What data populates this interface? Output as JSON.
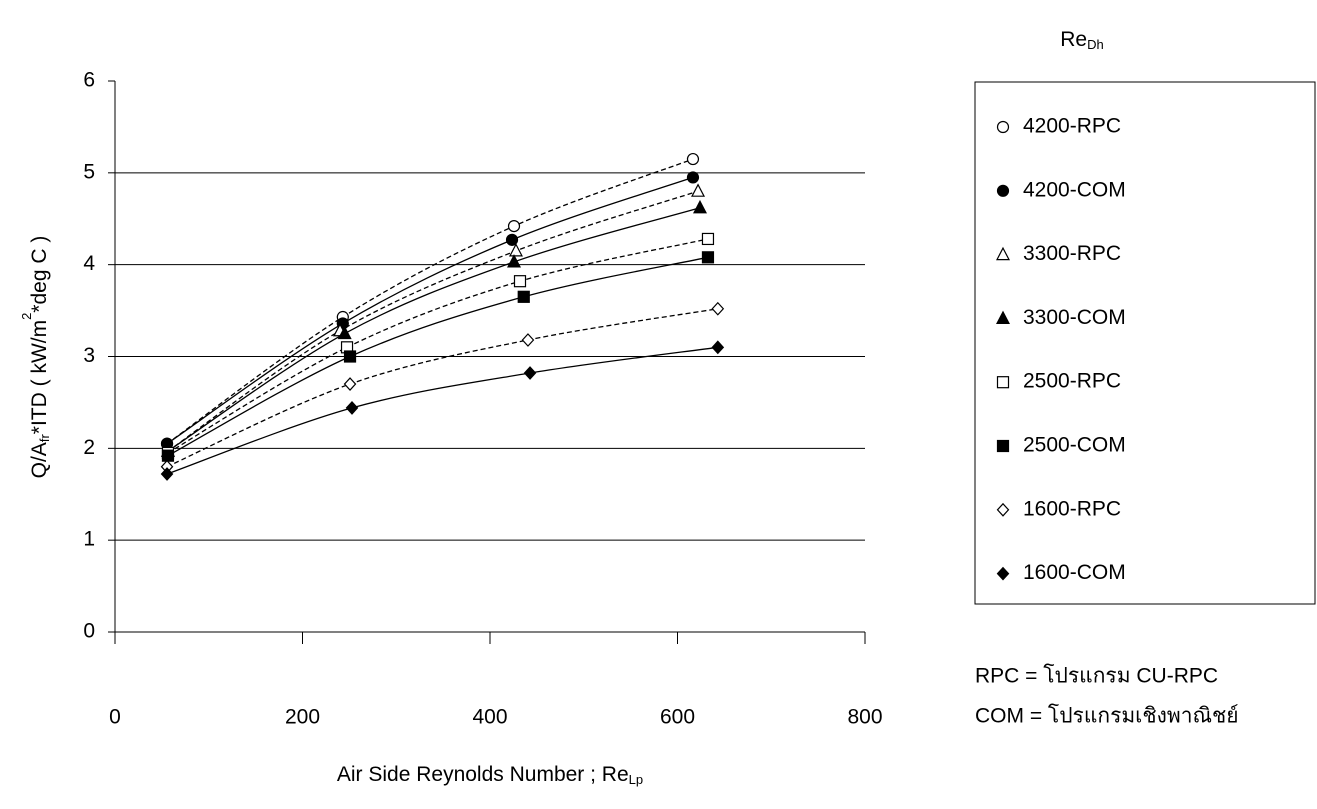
{
  "chart_data": {
    "type": "scatter",
    "x_label": [
      "Air Side Reynolds Number ; Re",
      "Lp"
    ],
    "y_label": [
      "Q/A",
      "fr",
      "*ITD  ( kW/m",
      "2",
      "*deg C )"
    ],
    "legend_title": [
      "Re",
      "Dh"
    ],
    "legend": "right",
    "grid": true,
    "xlim": [
      0,
      800
    ],
    "xticks": [
      0,
      200,
      400,
      600,
      800
    ],
    "ylim": [
      0,
      6
    ],
    "yticks": [
      0,
      1,
      2,
      3,
      4,
      5,
      6
    ],
    "series": [
      {
        "name": "4200-RPC",
        "color": "#000000",
        "marker": "circle-open",
        "line_style": "dashed",
        "x": [
          55.5,
          243,
          425.6,
          616.5
        ],
        "values": [
          2.05,
          3.43,
          4.42,
          5.15
        ]
      },
      {
        "name": "4200-COM",
        "color": "#000000",
        "marker": "circle",
        "line_style": "solid",
        "x": [
          55.5,
          243,
          423.5,
          616.5
        ],
        "values": [
          2.05,
          3.36,
          4.27,
          4.95
        ]
      },
      {
        "name": "3300-RPC",
        "color": "#000000",
        "marker": "triangle-open",
        "line_style": "dashed",
        "x": [
          56.5,
          240,
          427.7,
          621.9
        ],
        "values": [
          1.97,
          3.28,
          4.15,
          4.8
        ]
      },
      {
        "name": "3300-COM",
        "color": "#000000",
        "marker": "triangle",
        "line_style": "solid",
        "x": [
          56.5,
          245,
          425.6,
          624
        ],
        "values": [
          1.97,
          3.25,
          4.03,
          4.62
        ]
      },
      {
        "name": "2500-RPC",
        "color": "#000000",
        "marker": "square-open",
        "line_style": "dashed",
        "x": [
          56.5,
          247.5,
          432,
          632.5
        ],
        "values": [
          1.95,
          3.1,
          3.82,
          4.28
        ]
      },
      {
        "name": "2500-COM",
        "color": "#000000",
        "marker": "square",
        "line_style": "solid",
        "x": [
          56.5,
          250.7,
          436,
          632.5
        ],
        "values": [
          1.92,
          3.0,
          3.65,
          4.08
        ]
      },
      {
        "name": "1600-RPC",
        "color": "#000000",
        "marker": "diamond-open",
        "line_style": "dashed",
        "x": [
          55.5,
          250.7,
          440.5,
          643
        ],
        "values": [
          1.8,
          2.7,
          3.18,
          3.52
        ]
      },
      {
        "name": "1600-COM",
        "color": "#000000",
        "marker": "diamond",
        "line_style": "solid",
        "x": [
          55.5,
          252.8,
          442.7,
          643
        ],
        "values": [
          1.72,
          2.44,
          2.82,
          3.1
        ]
      }
    ],
    "notes": [
      "RPC  = โปรแกรม CU-RPC",
      "COM = โปรแกรมเชิงพาณิชย์"
    ]
  }
}
